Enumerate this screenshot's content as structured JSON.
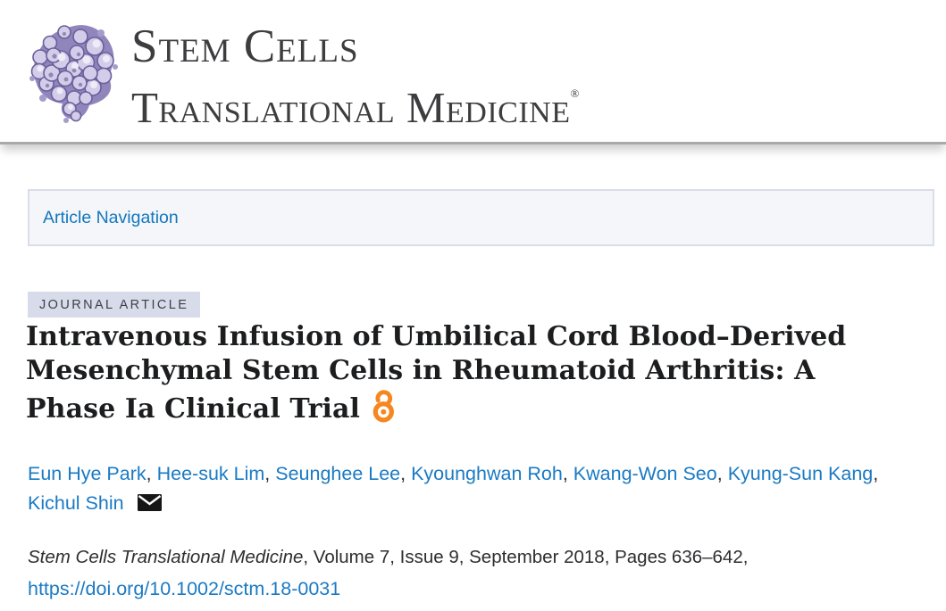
{
  "header": {
    "journal_name_line1": "Stem Cells",
    "journal_name_line2": "Translational Medicine",
    "registered_mark": "®",
    "logo_icon": "stem-cell-cluster-logo",
    "rule_color": "#a9a9a9"
  },
  "article_nav": {
    "label": "Article Navigation"
  },
  "article": {
    "type_badge": "JOURNAL ARTICLE",
    "title_full": "Intravenous Infusion of Umbilical Cord Blood–Derived Mesenchymal Stem Cells in Rheumatoid Arthritis: A Phase Ia Clinical Trial",
    "title_lines": [
      "Intravenous Infusion of Umbilical Cord Blood–Derived",
      "Mesenchymal Stem Cells in Rheumatoid Arthritis: A",
      "Phase Ia Clinical Trial"
    ],
    "open_access_icon": "open-access-icon",
    "authors": {
      "names": [
        "Eun Hye Park",
        "Hee-suk Lim",
        "Seunghee Lee",
        "Kyounghwan Roh",
        "Kwang-Won Seo",
        "Kyung-Sun Kang",
        "Kichul Shin"
      ],
      "separator": ", ",
      "break_after_index": 5,
      "correspondence_icon": "envelope-icon"
    },
    "citation": {
      "journal_italic": "Stem Cells Translational Medicine",
      "rest": ", Volume 7, Issue 9, September 2018, Pages 636–642,"
    },
    "doi_link": "https://doi.org/10.1002/sctm.18-0031"
  },
  "colors": {
    "link_blue": "#1a7ac4",
    "badge_bg": "#d8dbe9",
    "nav_box_bg": "#f4f6fa",
    "open_access_orange": "#f6861f",
    "logo_purple": "#9186bb"
  }
}
